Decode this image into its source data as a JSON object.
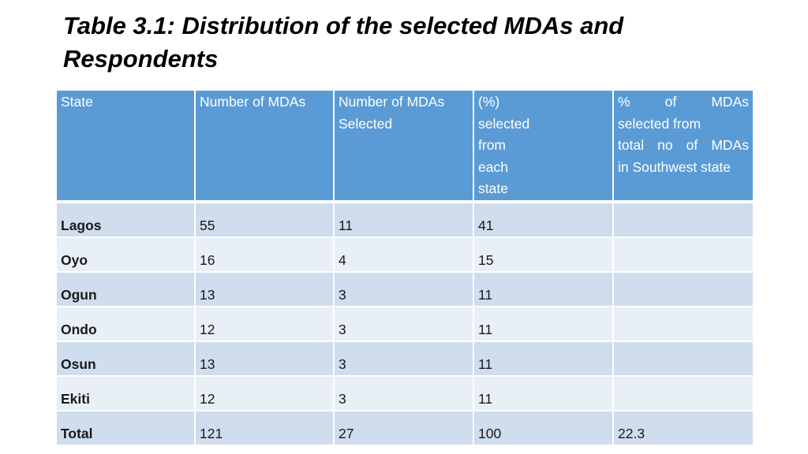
{
  "slide": {
    "title": "Table 3.1: Distribution of the selected MDAs and Respondents"
  },
  "table": {
    "headers": {
      "state": "State",
      "number_of_mdas": "Number of MDAs",
      "number_selected": "Number of MDAs Selected",
      "percent_selected": {
        "lines": [
          "(%)",
          "selected",
          "from",
          "each",
          "state"
        ]
      },
      "percent_total": {
        "line1_words": [
          "%",
          "of",
          "MDAs"
        ],
        "line2": "selected from",
        "line3_words": [
          "total",
          "no",
          "of",
          "MDAs"
        ],
        "line4": "in Southwest state"
      }
    },
    "rows": [
      {
        "state": "Lagos",
        "number_of_mdas": "55",
        "number_selected": "11",
        "percent_selected": "41",
        "percent_total": ""
      },
      {
        "state": "Oyo",
        "number_of_mdas": "16",
        "number_selected": "4",
        "percent_selected": "15",
        "percent_total": ""
      },
      {
        "state": "Ogun",
        "number_of_mdas": "13",
        "number_selected": "3",
        "percent_selected": "11",
        "percent_total": ""
      },
      {
        "state": "Ondo",
        "number_of_mdas": "12",
        "number_selected": "3",
        "percent_selected": "11",
        "percent_total": ""
      },
      {
        "state": "Osun",
        "number_of_mdas": "13",
        "number_selected": "3",
        "percent_selected": "11",
        "percent_total": ""
      },
      {
        "state": "Ekiti",
        "number_of_mdas": "12",
        "number_selected": "3",
        "percent_selected": "11",
        "percent_total": ""
      },
      {
        "state": "Total",
        "number_of_mdas": "121",
        "number_selected": "27",
        "percent_selected": "100",
        "percent_total": "22.3"
      }
    ]
  },
  "colors": {
    "header_bg": "#5b9bd5",
    "row_odd_bg": "#cfddee",
    "row_even_bg": "#e9eff7"
  }
}
